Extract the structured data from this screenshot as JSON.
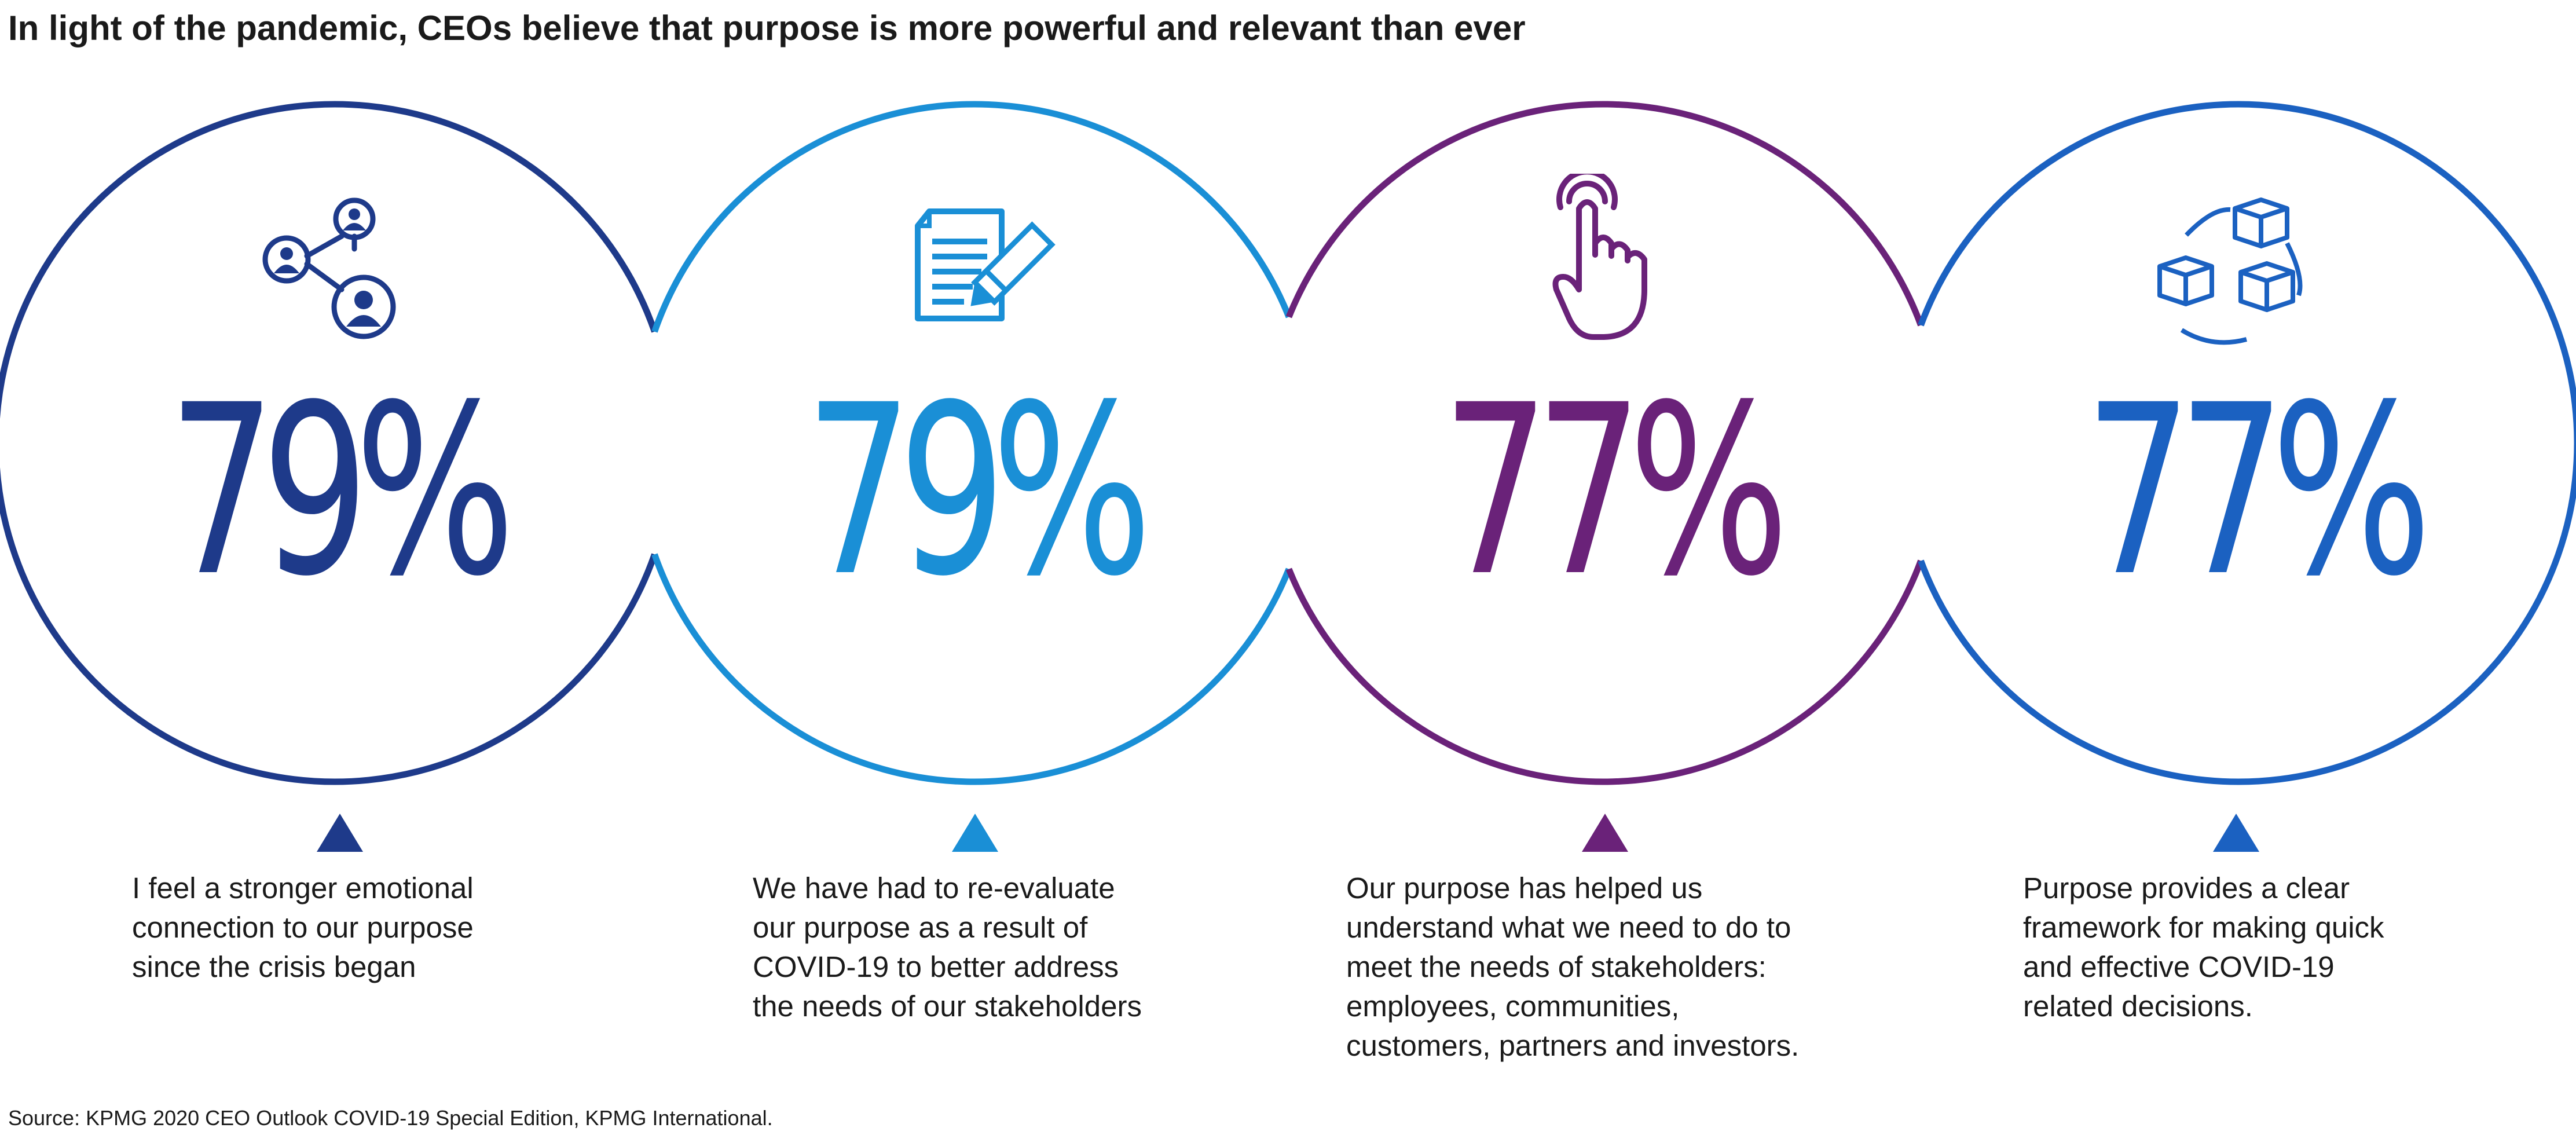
{
  "title": "In light of the pandemic, CEOs believe that purpose is more powerful and relevant than ever",
  "source": "Source: KPMG 2020 CEO Outlook COVID-19 Special Edition, KPMG International.",
  "colors": {
    "navy": "#1e3a8a",
    "sky": "#1a8fd6",
    "purple": "#6a2279",
    "blue": "#1b61c1",
    "text": "#1a1a1a"
  },
  "cards": [
    {
      "icon": "network-people-icon",
      "color": "#1e3a8a",
      "value": "79%",
      "lines": [
        "I feel a stronger emotional",
        "connection to our purpose",
        "since the crisis began"
      ]
    },
    {
      "icon": "document-pencil-icon",
      "color": "#1a8fd6",
      "value": "79%",
      "lines": [
        "We have had to re-evaluate",
        "our purpose as a result of",
        "COVID-19 to better address",
        "the needs of our stakeholders"
      ]
    },
    {
      "icon": "pointing-hand-icon",
      "color": "#6a2279",
      "value": "77%",
      "lines": [
        "Our purpose has helped us",
        "understand what we need to do to",
        "meet the needs of stakeholders:",
        "employees, communities,",
        "customers, partners and investors."
      ]
    },
    {
      "icon": "connected-cubes-icon",
      "color": "#1b61c1",
      "value": "77%",
      "lines": [
        "Purpose provides a clear",
        "framework for making quick",
        "and effective COVID-19",
        "related decisions."
      ]
    }
  ]
}
